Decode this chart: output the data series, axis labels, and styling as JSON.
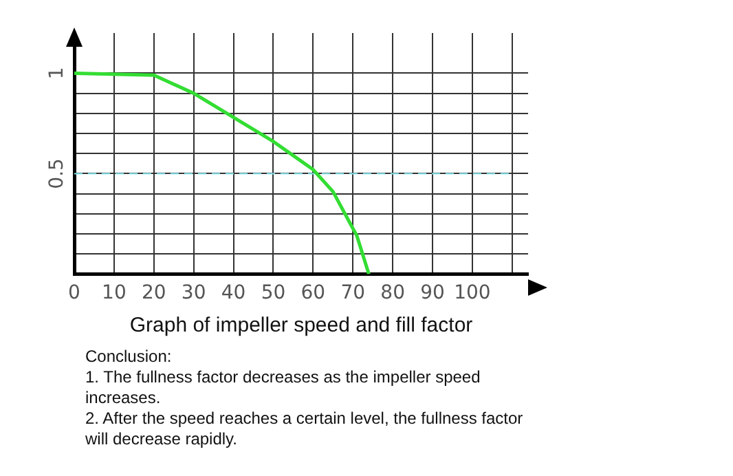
{
  "chart_data": {
    "type": "line",
    "xlabel": "Graph of impeller speed and fill factor",
    "x": [
      0,
      20,
      30,
      40,
      50,
      55,
      60,
      65,
      71,
      74
    ],
    "series": [
      {
        "color": "#33dd33",
        "values": [
          1.0,
          0.99,
          0.9,
          0.78,
          0.66,
          0.59,
          0.52,
          0.41,
          0.19,
          0
        ]
      }
    ],
    "xlim": [
      0,
      114
    ],
    "xticks": [
      0,
      10,
      20,
      30,
      40,
      50,
      60,
      70,
      80,
      90,
      100,
      {
        "value": 110,
        "label": null
      }
    ],
    "ylim": [
      0,
      1.2
    ],
    "yticks": [
      {
        "value": 0,
        "label": null
      },
      {
        "value": 0.1,
        "label": null
      },
      {
        "value": 0.2,
        "label": null
      },
      {
        "value": 0.3,
        "label": null
      },
      {
        "value": 0.4,
        "label": null
      },
      0.5,
      {
        "value": 0.6,
        "label": null
      },
      {
        "value": 0.7,
        "label": null
      },
      {
        "value": 0.8,
        "label": null
      },
      {
        "value": 0.9,
        "label": null
      },
      1
    ],
    "ref_lines": [
      {
        "axis": "y",
        "value": 0.5,
        "color": "#88e8f0",
        "line_style": "dashed"
      }
    ],
    "grid": true,
    "legend": false,
    "marker": "none",
    "line_style": "solid",
    "annotations": [
      "Conclusion:",
      "1. The fullness factor decreases as the impeller speed increases.",
      "2. After the speed reaches a certain level, the fullness factor will decrease rapidly."
    ]
  }
}
